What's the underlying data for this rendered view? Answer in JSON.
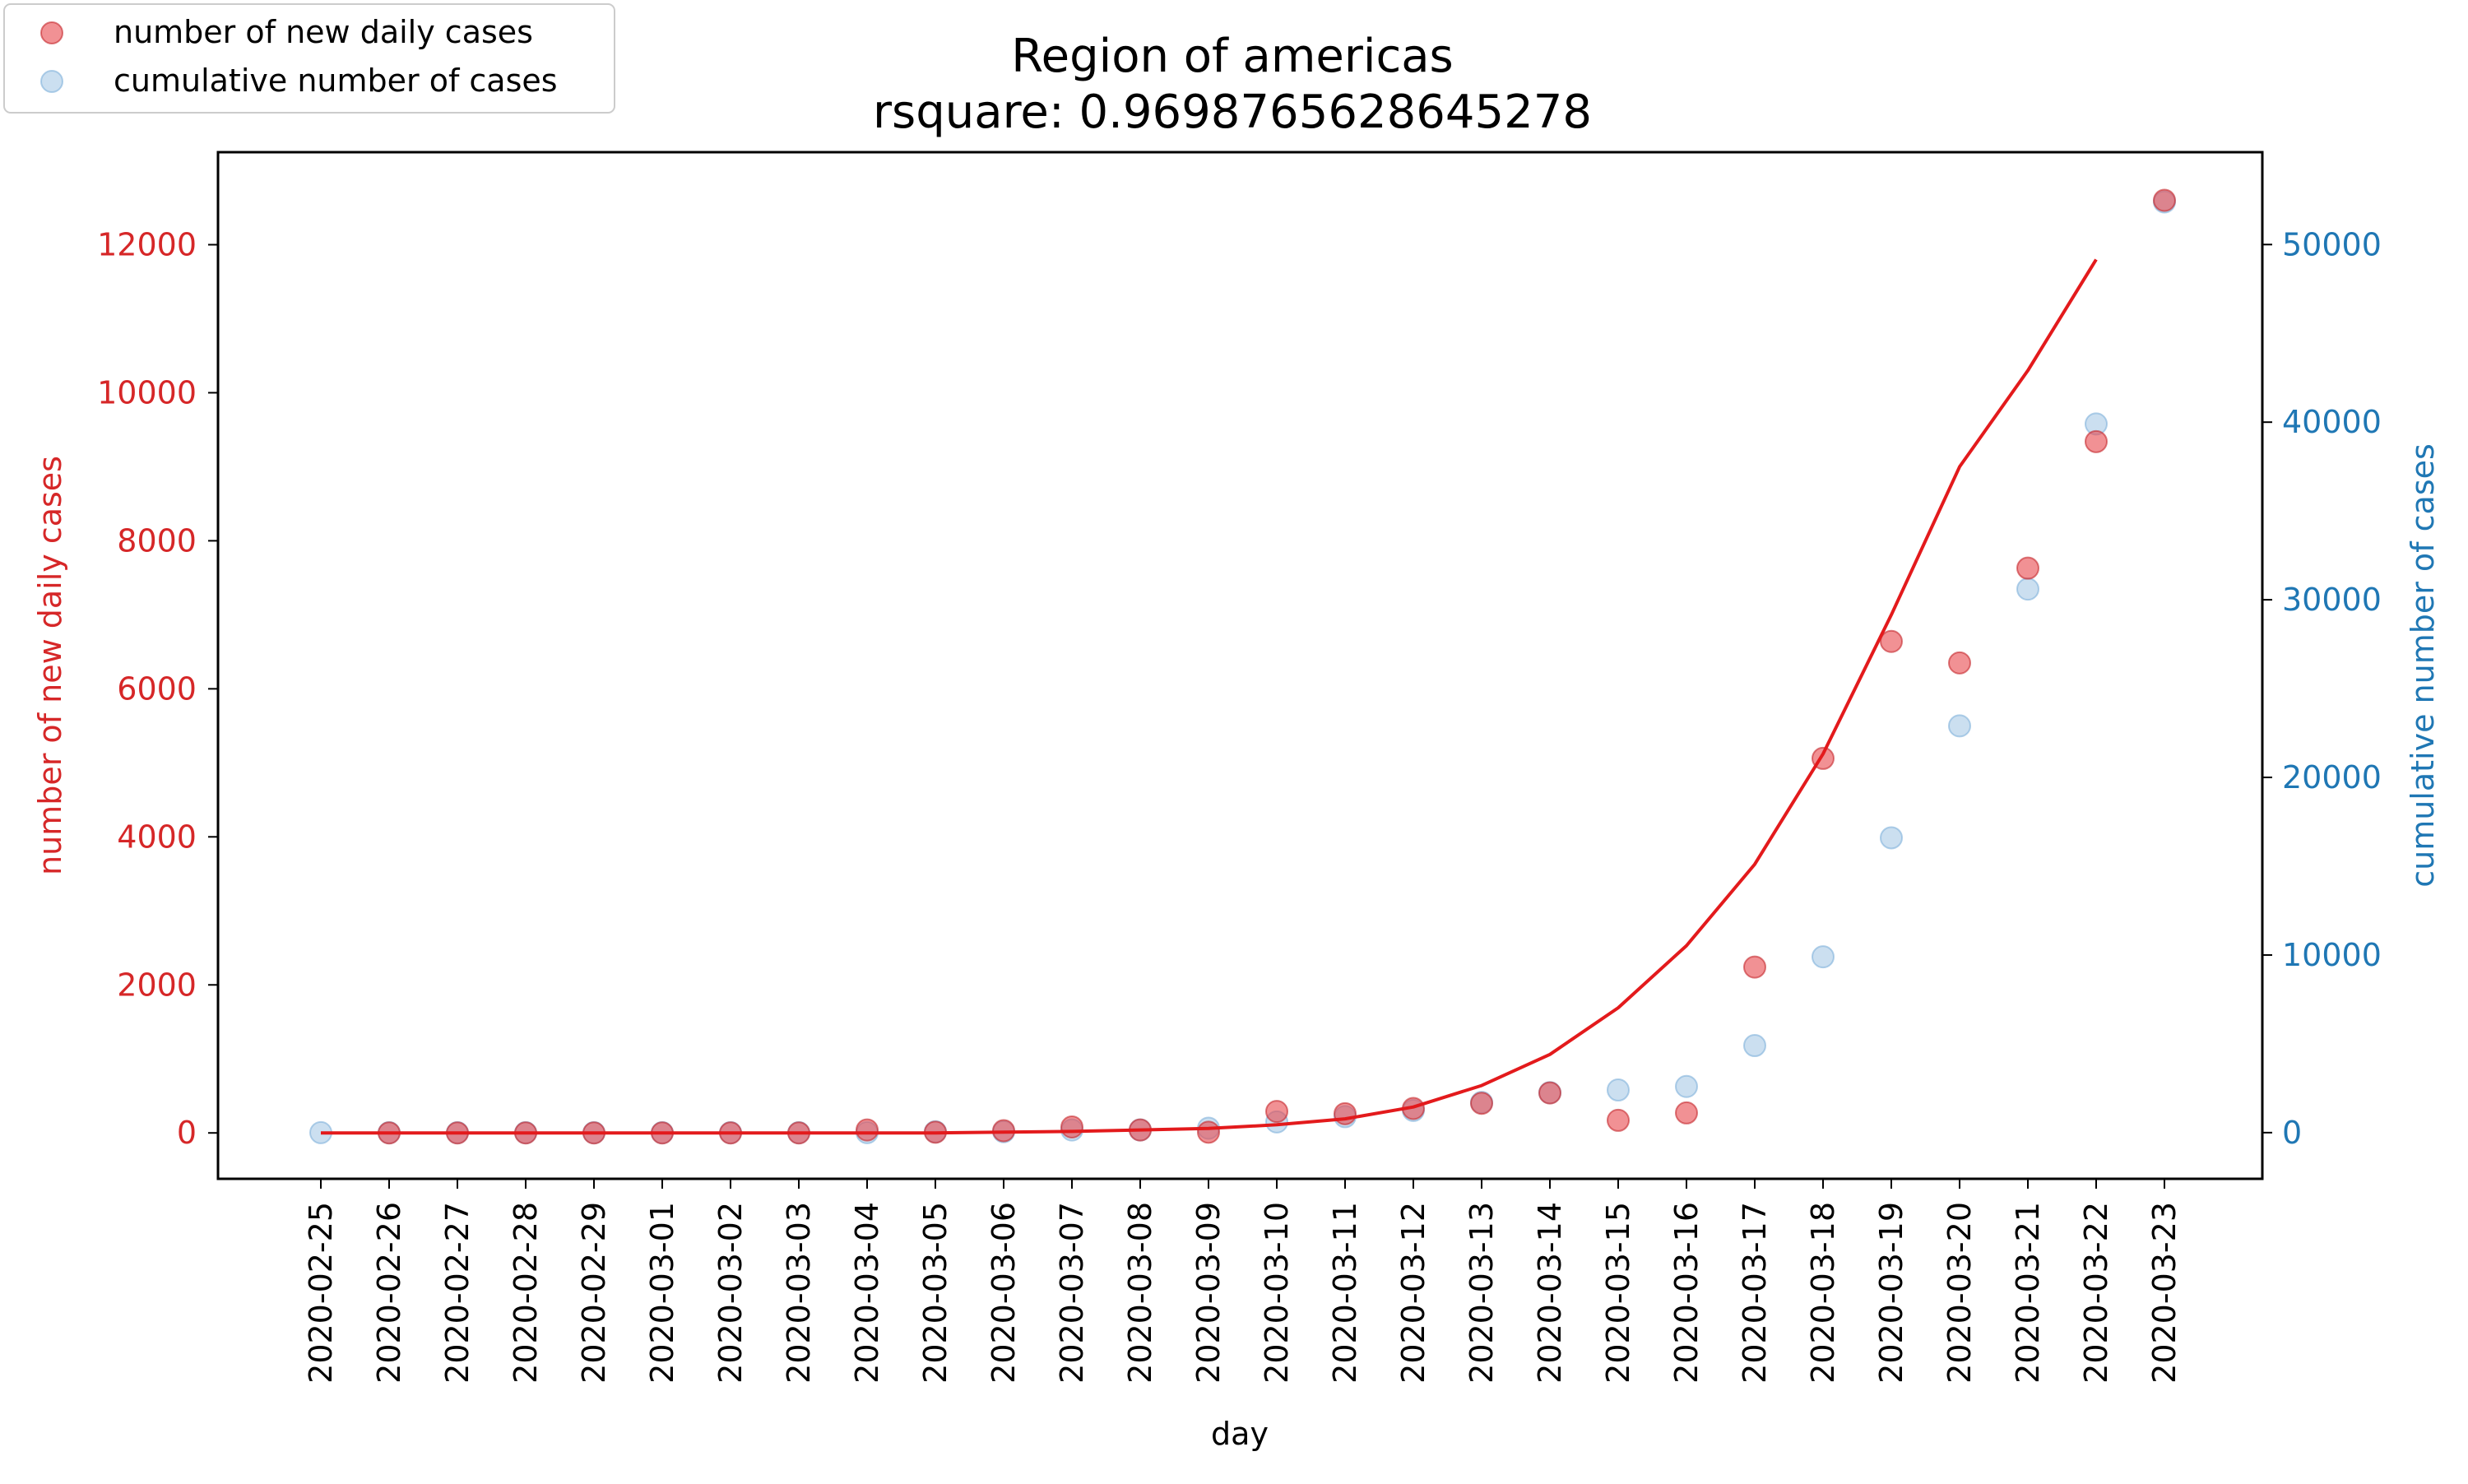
{
  "chart_data": {
    "type": "scatter",
    "title": "Region of americas",
    "subtitle": "rsquare: 0.9698765628645278",
    "xlabel": "day",
    "ylabel_left": "number of new daily cases",
    "ylabel_right": "cumulative number of cases",
    "categories": [
      "2020-02-25",
      "2020-02-26",
      "2020-02-27",
      "2020-02-28",
      "2020-02-29",
      "2020-03-01",
      "2020-03-02",
      "2020-03-03",
      "2020-03-04",
      "2020-03-05",
      "2020-03-06",
      "2020-03-07",
      "2020-03-08",
      "2020-03-09",
      "2020-03-10",
      "2020-03-11",
      "2020-03-12",
      "2020-03-13",
      "2020-03-14",
      "2020-03-15",
      "2020-03-16",
      "2020-03-17",
      "2020-03-18",
      "2020-03-19",
      "2020-03-20",
      "2020-03-21",
      "2020-03-22",
      "2020-03-23"
    ],
    "ylim_left": [
      -620,
      13250
    ],
    "ylim_right": [
      -2600,
      55200
    ],
    "yticks_left": [
      0,
      2000,
      4000,
      6000,
      8000,
      10000,
      12000
    ],
    "yticks_right": [
      0,
      10000,
      20000,
      30000,
      40000,
      50000
    ],
    "series": [
      {
        "name": "number of new daily cases",
        "axis": "left",
        "kind": "scatter",
        "color": "#e8474c",
        "values": [
          null,
          0,
          0,
          0,
          0,
          0,
          0,
          0,
          40,
          10,
          30,
          80,
          40,
          10,
          290,
          260,
          330,
          400,
          540,
          170,
          270,
          2240,
          5060,
          6640,
          6350,
          7630,
          9340,
          12600
        ]
      },
      {
        "name": "cumulative number of cases",
        "axis": "right",
        "kind": "scatter",
        "color": "#a9c9e6",
        "values": [
          0,
          0,
          0,
          0,
          0,
          0,
          0,
          0,
          0,
          50,
          50,
          150,
          150,
          250,
          600,
          900,
          1250,
          1700,
          2250,
          2400,
          2600,
          4900,
          9900,
          16600,
          22900,
          30600,
          39900,
          52400
        ]
      },
      {
        "kind": "line",
        "axis": "left",
        "color": "#e31a1c",
        "values": [
          0,
          0,
          0,
          0,
          0,
          0,
          0,
          0,
          0,
          0,
          10,
          20,
          40,
          60,
          110,
          190,
          350,
          640,
          1060,
          1690,
          2530,
          3630,
          5120,
          7000,
          9000,
          10300,
          11800,
          null
        ]
      }
    ],
    "legend_position": "top-left",
    "grid": false
  }
}
